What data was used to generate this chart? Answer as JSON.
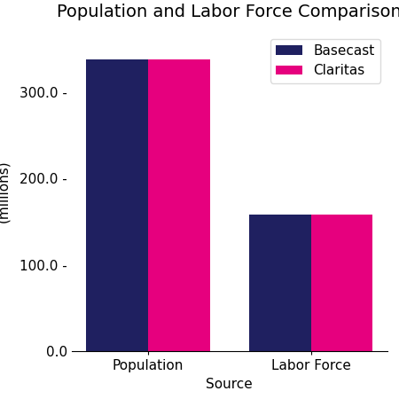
{
  "title": "Population and Labor Force Comparison",
  "categories": [
    "Population",
    "Labor Force"
  ],
  "series": [
    {
      "name": "Basecast",
      "values": [
        338,
        158
      ],
      "color": "#1f2060"
    },
    {
      "name": "Claritas",
      "values": [
        338,
        158
      ],
      "color": "#e6007e"
    }
  ],
  "xlabel": "Source",
  "ylabel": "Population\n(millions)",
  "ylim": [
    0,
    370
  ],
  "yticks": [
    0.0,
    100.0,
    200.0,
    300.0
  ],
  "bar_width": 0.38,
  "legend_loc": "upper right",
  "figsize": [
    4.5,
    4.5
  ],
  "dpi": 100,
  "title_fontsize": 14,
  "axis_fontsize": 11,
  "tick_fontsize": 11
}
